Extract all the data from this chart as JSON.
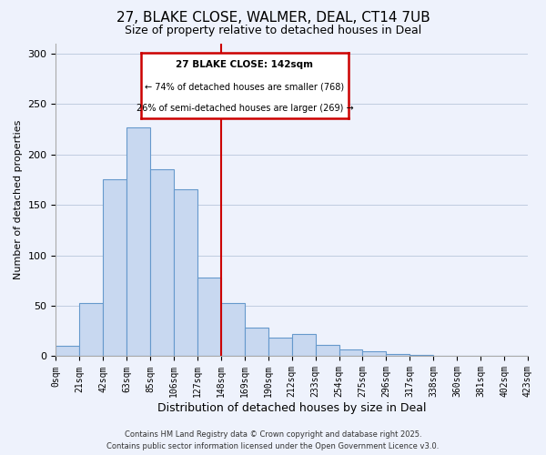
{
  "title_line1": "27, BLAKE CLOSE, WALMER, DEAL, CT14 7UB",
  "title_line2": "Size of property relative to detached houses in Deal",
  "xlabel": "Distribution of detached houses by size in Deal",
  "ylabel": "Number of detached properties",
  "bar_labels": [
    "0sqm",
    "21sqm",
    "42sqm",
    "63sqm",
    "85sqm",
    "106sqm",
    "127sqm",
    "148sqm",
    "169sqm",
    "190sqm",
    "212sqm",
    "233sqm",
    "254sqm",
    "275sqm",
    "296sqm",
    "317sqm",
    "338sqm",
    "360sqm",
    "381sqm",
    "402sqm",
    "423sqm"
  ],
  "bar_values": [
    10,
    53,
    175,
    227,
    185,
    165,
    78,
    53,
    28,
    18,
    22,
    11,
    7,
    5,
    2,
    1,
    0,
    0,
    0,
    0
  ],
  "bar_color": "#c8d8f0",
  "bar_edge_color": "#6699cc",
  "vline_x": 7,
  "vline_color": "#cc0000",
  "ylim": [
    0,
    310
  ],
  "yticks": [
    0,
    50,
    100,
    150,
    200,
    250,
    300
  ],
  "annotation_title": "27 BLAKE CLOSE: 142sqm",
  "annotation_line1": "← 74% of detached houses are smaller (768)",
  "annotation_line2": "26% of semi-detached houses are larger (269) →",
  "annotation_box_color": "#ffffff",
  "annotation_box_edge": "#cc0000",
  "footer_line1": "Contains HM Land Registry data © Crown copyright and database right 2025.",
  "footer_line2": "Contains public sector information licensed under the Open Government Licence v3.0.",
  "background_color": "#eef2fc"
}
